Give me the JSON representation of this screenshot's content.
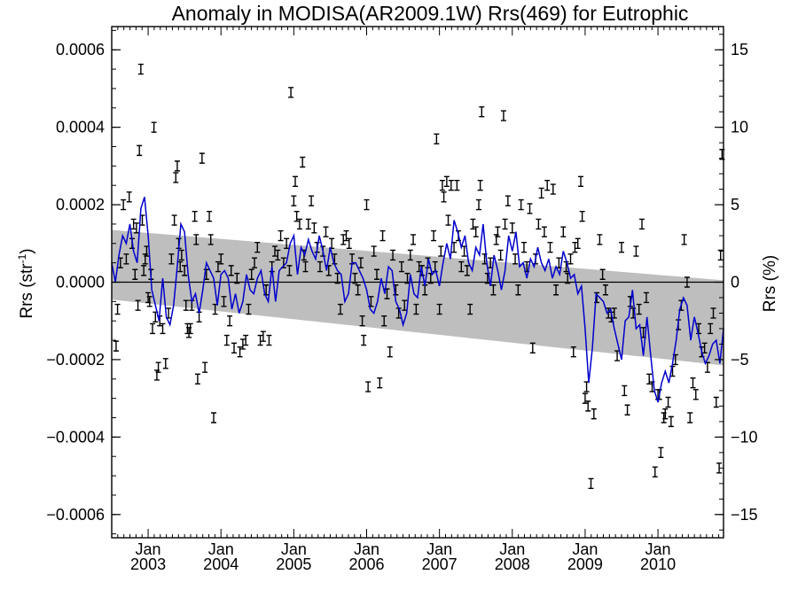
{
  "chart_data": {
    "type": "scatter",
    "title": "Anomaly in MODISA(AR2009.1W) Rrs(469) for Eutrophic",
    "ylabel_left": "Rrs (str",
    "ylabel_left_sup": "-1",
    "ylabel_left_close": ")",
    "ylabel_right": "Rrs (%)",
    "xlim": [
      2002.5,
      2010.9
    ],
    "ylim": [
      -0.00066,
      0.00066
    ],
    "ylim_right": [
      -16.5,
      16.5
    ],
    "grid": false,
    "legend": "none",
    "y_ticks": [
      {
        "value": 0.0006,
        "label": "0.0006"
      },
      {
        "value": 0.0004,
        "label": "0.0004"
      },
      {
        "value": 0.0002,
        "label": "0.0002"
      },
      {
        "value": 0.0,
        "label": "0.0000"
      },
      {
        "value": -0.0002,
        "label": "−0.0002"
      },
      {
        "value": -0.0004,
        "label": "−0.0004"
      },
      {
        "value": -0.0006,
        "label": "−0.0006"
      }
    ],
    "y_ticks_right": [
      {
        "value": 15,
        "label": "15"
      },
      {
        "value": 10,
        "label": "10"
      },
      {
        "value": 5,
        "label": "5"
      },
      {
        "value": 0,
        "label": "0"
      },
      {
        "value": -5,
        "label": "−5"
      },
      {
        "value": -10,
        "label": "−10"
      },
      {
        "value": -15,
        "label": "−15"
      }
    ],
    "x_ticks": [
      {
        "value": 2003.0,
        "month": "Jan",
        "year": "2003"
      },
      {
        "value": 2004.0,
        "month": "Jan",
        "year": "2004"
      },
      {
        "value": 2005.0,
        "month": "Jan",
        "year": "2005"
      },
      {
        "value": 2006.0,
        "month": "Jan",
        "year": "2006"
      },
      {
        "value": 2007.0,
        "month": "Jan",
        "year": "2007"
      },
      {
        "value": 2008.0,
        "month": "Jan",
        "year": "2008"
      },
      {
        "value": 2009.0,
        "month": "Jan",
        "year": "2009"
      },
      {
        "value": 2010.0,
        "month": "Jan",
        "year": "2010"
      }
    ],
    "band": {
      "x": [
        2002.5,
        2010.9
      ],
      "upper": [
        0.000135,
        5e-06
      ],
      "lower": [
        -4.5e-05,
        -0.000215
      ],
      "color": "#bebebe"
    },
    "zero_line": 0.0,
    "points": [
      [
        2002.56,
        -0.000165
      ],
      [
        2002.58,
        -7e-05
      ],
      [
        2002.62,
        5e-05
      ],
      [
        2002.66,
        0.0002
      ],
      [
        2002.7,
        6e-05
      ],
      [
        2002.74,
        0.00022
      ],
      [
        2002.78,
        0.0001
      ],
      [
        2002.8,
        0.00015
      ],
      [
        2002.82,
        2e-05
      ],
      [
        2002.84,
        0.00014
      ],
      [
        2002.86,
        -6e-05
      ],
      [
        2002.88,
        0.00034
      ],
      [
        2002.9,
        0.00055
      ],
      [
        2002.92,
        0.00016
      ],
      [
        2002.94,
        3e-05
      ],
      [
        2002.96,
        6e-05
      ],
      [
        2002.98,
        8e-05
      ],
      [
        2003.0,
        -4e-05
      ],
      [
        2003.02,
        -5e-05
      ],
      [
        2003.04,
        2e-05
      ],
      [
        2003.06,
        -0.00012
      ],
      [
        2003.08,
        0.0004
      ],
      [
        2003.1,
        -9e-05
      ],
      [
        2003.12,
        -0.00024
      ],
      [
        2003.14,
        -0.00022
      ],
      [
        2003.16,
        -0.0001
      ],
      [
        2003.2,
        -0.00012
      ],
      [
        2003.24,
        -0.00021
      ],
      [
        2003.28,
        -8e-05
      ],
      [
        2003.32,
        6e-05
      ],
      [
        2003.36,
        0.00016
      ],
      [
        2003.38,
        0.00027
      ],
      [
        2003.4,
        0.0003
      ],
      [
        2003.42,
        0.0001
      ],
      [
        2003.44,
        4e-05
      ],
      [
        2003.46,
        7e-05
      ],
      [
        2003.5,
        3e-05
      ],
      [
        2003.52,
        -6e-05
      ],
      [
        2003.54,
        -0.00012
      ],
      [
        2003.56,
        -0.00013
      ],
      [
        2003.58,
        -0.00012
      ],
      [
        2003.6,
        -6e-05
      ],
      [
        2003.64,
        0.00017
      ],
      [
        2003.66,
        0.00011
      ],
      [
        2003.68,
        -0.00025
      ],
      [
        2003.7,
        -9e-05
      ],
      [
        2003.74,
        0.00032
      ],
      [
        2003.78,
        -0.00022
      ],
      [
        2003.8,
        2e-05
      ],
      [
        2003.84,
        0.00017
      ],
      [
        2003.86,
        0.00011
      ],
      [
        2003.9,
        -0.00035
      ],
      [
        2003.92,
        -7e-05
      ],
      [
        2003.96,
        4e-05
      ],
      [
        2004.0,
        6e-05
      ],
      [
        2004.04,
        -5e-05
      ],
      [
        2004.08,
        -0.00015
      ],
      [
        2004.12,
        -0.0001
      ],
      [
        2004.14,
        3e-05
      ],
      [
        2004.18,
        -0.00017
      ],
      [
        2004.22,
        1e-05
      ],
      [
        2004.26,
        -0.00018
      ],
      [
        2004.3,
        -0.00016
      ],
      [
        2004.34,
        -0.00015
      ],
      [
        2004.38,
        -7e-05
      ],
      [
        2004.42,
        2e-05
      ],
      [
        2004.46,
        5e-05
      ],
      [
        2004.5,
        9e-05
      ],
      [
        2004.54,
        -0.00015
      ],
      [
        2004.58,
        -0.00014
      ],
      [
        2004.62,
        -2e-05
      ],
      [
        2004.66,
        -0.00015
      ],
      [
        2004.7,
        4e-05
      ],
      [
        2004.74,
        8e-05
      ],
      [
        2004.78,
        7e-05
      ],
      [
        2004.82,
        0.00012
      ],
      [
        2004.86,
        5e-05
      ],
      [
        2004.9,
        0.0001
      ],
      [
        2004.94,
        3e-05
      ],
      [
        2004.96,
        0.00049
      ],
      [
        2005.0,
        0.00021
      ],
      [
        2005.02,
        0.00026
      ],
      [
        2005.04,
        0.00017
      ],
      [
        2005.08,
        0.00015
      ],
      [
        2005.12,
        0.00031
      ],
      [
        2005.14,
        7e-05
      ],
      [
        2005.16,
        4e-05
      ],
      [
        2005.2,
        0.00015
      ],
      [
        2005.24,
        0.00021
      ],
      [
        2005.28,
        0.00014
      ],
      [
        2005.32,
        9e-05
      ],
      [
        2005.36,
        4e-05
      ],
      [
        2005.4,
        8e-05
      ],
      [
        2005.44,
        0.00013
      ],
      [
        2005.48,
        3e-05
      ],
      [
        2005.52,
        0.0001
      ],
      [
        2005.56,
        6e-05
      ],
      [
        2005.6,
        1e-05
      ],
      [
        2005.64,
        -7e-05
      ],
      [
        2005.68,
        0.00011
      ],
      [
        2005.72,
        0.00012
      ],
      [
        2005.76,
        0.0001
      ],
      [
        2005.8,
        6e-05
      ],
      [
        2005.84,
        1e-05
      ],
      [
        2005.88,
        -2e-05
      ],
      [
        2005.92,
        5e-05
      ],
      [
        2005.94,
        -0.0001
      ],
      [
        2005.96,
        -0.00015
      ],
      [
        2006.0,
        0.0002
      ],
      [
        2006.02,
        -0.00027
      ],
      [
        2006.06,
        -5e-05
      ],
      [
        2006.1,
        8e-05
      ],
      [
        2006.14,
        2e-05
      ],
      [
        2006.18,
        -0.00026
      ],
      [
        2006.22,
        0.00012
      ],
      [
        2006.24,
        -0.0001
      ],
      [
        2006.28,
        -3e-05
      ],
      [
        2006.32,
        -0.00018
      ],
      [
        2006.36,
        7e-05
      ],
      [
        2006.4,
        -2e-05
      ],
      [
        2006.44,
        -8e-05
      ],
      [
        2006.48,
        4e-05
      ],
      [
        2006.52,
        -6e-05
      ],
      [
        2006.56,
        1e-05
      ],
      [
        2006.6,
        7e-05
      ],
      [
        2006.64,
        0.00011
      ],
      [
        2006.68,
        -7e-05
      ],
      [
        2006.72,
        4e-05
      ],
      [
        2006.76,
        3e-05
      ],
      [
        2006.8,
        -2e-05
      ],
      [
        2006.84,
        5e-05
      ],
      [
        2006.88,
        1e-05
      ],
      [
        2006.92,
        0.00012
      ],
      [
        2006.94,
        4e-05
      ],
      [
        2006.96,
        0.00037
      ],
      [
        2007.0,
        -7e-05
      ],
      [
        2007.02,
        8e-05
      ],
      [
        2007.04,
        0.00025
      ],
      [
        2007.06,
        0.00022
      ],
      [
        2007.1,
        0.00026
      ],
      [
        2007.12,
        0.00016
      ],
      [
        2007.16,
        0.00025
      ],
      [
        2007.2,
        9e-05
      ],
      [
        2007.24,
        0.00025
      ],
      [
        2007.26,
        0.00012
      ],
      [
        2007.3,
        4e-05
      ],
      [
        2007.34,
        8e-05
      ],
      [
        2007.38,
        3e-05
      ],
      [
        2007.42,
        -7e-05
      ],
      [
        2007.46,
        0.00015
      ],
      [
        2007.5,
        0.00013
      ],
      [
        2007.54,
        0.0002
      ],
      [
        2007.56,
        0.00025
      ],
      [
        2007.58,
        0.00044
      ],
      [
        2007.62,
        6e-05
      ],
      [
        2007.66,
        1e-05
      ],
      [
        2007.7,
        5e-05
      ],
      [
        2007.74,
        -2e-05
      ],
      [
        2007.78,
        0.00011
      ],
      [
        2007.8,
        0.00013
      ],
      [
        2007.84,
        7e-05
      ],
      [
        2007.88,
        0.00043
      ],
      [
        2007.9,
        0.00015
      ],
      [
        2007.94,
        0.00021
      ],
      [
        2008.0,
        0.00014
      ],
      [
        2008.04,
        6e-05
      ],
      [
        2008.08,
        -2e-05
      ],
      [
        2008.12,
        0.0002
      ],
      [
        2008.16,
        9e-05
      ],
      [
        2008.2,
        4e-05
      ],
      [
        2008.24,
        0.00019
      ],
      [
        2008.28,
        -0.00017
      ],
      [
        2008.32,
        6e-05
      ],
      [
        2008.36,
        0.00015
      ],
      [
        2008.4,
        0.00023
      ],
      [
        2008.44,
        0.00013
      ],
      [
        2008.48,
        0.00025
      ],
      [
        2008.52,
        9e-05
      ],
      [
        2008.56,
        0.00024
      ],
      [
        2008.6,
        -2e-05
      ],
      [
        2008.64,
        5e-05
      ],
      [
        2008.7,
        0.00013
      ],
      [
        2008.74,
        4e-05
      ],
      [
        2008.76,
        1e-05
      ],
      [
        2008.8,
        6e-05
      ],
      [
        2008.84,
        -0.00018
      ],
      [
        2008.86,
        9e-05
      ],
      [
        2008.9,
        0.0001
      ],
      [
        2008.94,
        0.00026
      ],
      [
        2008.96,
        0.00017
      ],
      [
        2009.0,
        -0.0003
      ],
      [
        2009.02,
        -0.00027
      ],
      [
        2009.04,
        -0.00032
      ],
      [
        2009.08,
        -0.00052
      ],
      [
        2009.12,
        -0.00034
      ],
      [
        2009.16,
        -4e-05
      ],
      [
        2009.2,
        0.00011
      ],
      [
        2009.24,
        2e-05
      ],
      [
        2009.28,
        -2e-05
      ],
      [
        2009.32,
        -8e-05
      ],
      [
        2009.36,
        -9e-05
      ],
      [
        2009.4,
        -8e-05
      ],
      [
        2009.44,
        -0.00019
      ],
      [
        2009.5,
        9e-05
      ],
      [
        2009.54,
        -0.00028
      ],
      [
        2009.58,
        -0.00033
      ],
      [
        2009.62,
        -5e-05
      ],
      [
        2009.66,
        -8e-05
      ],
      [
        2009.7,
        8e-05
      ],
      [
        2009.74,
        -7e-05
      ],
      [
        2009.78,
        0.00015
      ],
      [
        2009.8,
        -0.00013
      ],
      [
        2009.84,
        -4e-05
      ],
      [
        2009.88,
        -0.00025
      ],
      [
        2009.92,
        -0.00027
      ],
      [
        2009.96,
        -0.00049
      ],
      [
        2010.0,
        -0.00029
      ],
      [
        2010.02,
        -0.00029
      ],
      [
        2010.04,
        -0.00044
      ],
      [
        2010.08,
        -0.00035
      ],
      [
        2010.1,
        -0.00034
      ],
      [
        2010.14,
        -0.00031
      ],
      [
        2010.18,
        -0.00036
      ],
      [
        2010.2,
        -0.00023
      ],
      [
        2010.24,
        -0.0002
      ],
      [
        2010.28,
        -0.00011
      ],
      [
        2010.32,
        -6e-05
      ],
      [
        2010.36,
        0.00011
      ],
      [
        2010.4,
        0.0
      ],
      [
        2010.44,
        -0.00035
      ],
      [
        2010.48,
        -0.00026
      ],
      [
        2010.52,
        -0.00029
      ],
      [
        2010.56,
        -0.00012
      ],
      [
        2010.6,
        -0.00018
      ],
      [
        2010.64,
        -0.00017
      ],
      [
        2010.68,
        -0.00022
      ],
      [
        2010.72,
        -0.00012
      ],
      [
        2010.76,
        -8e-05
      ],
      [
        2010.8,
        -0.00031
      ],
      [
        2010.84,
        -0.00048
      ],
      [
        2010.86,
        7e-05
      ],
      [
        2010.88,
        0.00033
      ]
    ],
    "smooth_x": [
      2002.5,
      2002.55,
      2002.6,
      2002.65,
      2002.7,
      2002.75,
      2002.8,
      2002.85,
      2002.9,
      2002.95,
      2003.0,
      2003.05,
      2003.1,
      2003.15,
      2003.2,
      2003.25,
      2003.3,
      2003.35,
      2003.4,
      2003.45,
      2003.5,
      2003.55,
      2003.6,
      2003.65,
      2003.7,
      2003.75,
      2003.8,
      2003.85,
      2003.9,
      2003.95,
      2004.0,
      2004.05,
      2004.1,
      2004.15,
      2004.2,
      2004.25,
      2004.3,
      2004.35,
      2004.4,
      2004.45,
      2004.5,
      2004.55,
      2004.6,
      2004.65,
      2004.7,
      2004.75,
      2004.8,
      2004.85,
      2004.9,
      2004.95,
      2005.0,
      2005.05,
      2005.1,
      2005.15,
      2005.2,
      2005.25,
      2005.3,
      2005.35,
      2005.4,
      2005.45,
      2005.5,
      2005.55,
      2005.6,
      2005.65,
      2005.7,
      2005.75,
      2005.8,
      2005.85,
      2005.9,
      2005.95,
      2006.0,
      2006.05,
      2006.1,
      2006.15,
      2006.2,
      2006.25,
      2006.3,
      2006.35,
      2006.4,
      2006.45,
      2006.5,
      2006.55,
      2006.6,
      2006.65,
      2006.7,
      2006.75,
      2006.8,
      2006.85,
      2006.9,
      2006.95,
      2007.0,
      2007.05,
      2007.1,
      2007.15,
      2007.2,
      2007.25,
      2007.3,
      2007.35,
      2007.4,
      2007.45,
      2007.5,
      2007.55,
      2007.6,
      2007.65,
      2007.7,
      2007.75,
      2007.8,
      2007.85,
      2007.9,
      2007.95,
      2008.0,
      2008.05,
      2008.1,
      2008.15,
      2008.2,
      2008.25,
      2008.3,
      2008.35,
      2008.4,
      2008.45,
      2008.5,
      2008.55,
      2008.6,
      2008.65,
      2008.7,
      2008.75,
      2008.8,
      2008.85,
      2008.9,
      2008.95,
      2009.0,
      2009.05,
      2009.1,
      2009.15,
      2009.2,
      2009.25,
      2009.3,
      2009.35,
      2009.4,
      2009.45,
      2009.5,
      2009.55,
      2009.6,
      2009.65,
      2009.7,
      2009.75,
      2009.8,
      2009.85,
      2009.9,
      2009.95,
      2010.0,
      2010.05,
      2010.1,
      2010.15,
      2010.2,
      2010.25,
      2010.3,
      2010.35,
      2010.4,
      2010.45,
      2010.5,
      2010.55,
      2010.6,
      2010.65,
      2010.7,
      2010.75,
      2010.8,
      2010.85,
      2010.9
    ],
    "smooth_y": [
      5e-05,
      0.0,
      7e-05,
      0.00012,
      0.0001,
      0.00015,
      8e-05,
      5e-05,
      0.00019,
      0.00022,
      0.00012,
      -2e-05,
      -6e-05,
      -0.0001,
      1e-05,
      -9e-05,
      -0.00011,
      -6e-05,
      4e-05,
      0.00015,
      0.00013,
      2e-05,
      -5e-05,
      -3e-05,
      -8e-05,
      -2e-05,
      5e-05,
      3e-05,
      1e-05,
      -6e-05,
      2e-05,
      3e-05,
      1e-05,
      -7e-05,
      -3e-05,
      -8e-05,
      -5e-05,
      2e-05,
      -2e-05,
      -3e-05,
      1e-05,
      3e-05,
      -3e-05,
      -5e-05,
      4e-05,
      -5e-05,
      3e-05,
      4e-05,
      5e-05,
      0.0001,
      0.00012,
      2e-05,
      9e-05,
      7e-05,
      0.00011,
      8e-05,
      6e-05,
      0.00012,
      8e-05,
      3e-05,
      9e-05,
      5e-05,
      3e-05,
      2e-05,
      -5e-05,
      -3e-05,
      5e-05,
      5e-05,
      3e-05,
      1e-05,
      -2e-05,
      -7e-05,
      -8e-05,
      -5e-05,
      1e-05,
      -3e-05,
      4e-05,
      3e-05,
      -5e-05,
      -7e-05,
      -0.00011,
      -8e-05,
      2e-05,
      -3e-05,
      -4e-05,
      4e-05,
      -1e-05,
      6e-05,
      2e-05,
      3e-05,
      -1e-05,
      5e-05,
      0.0001,
      6e-05,
      0.00016,
      0.00013,
      9e-05,
      0.00012,
      5e-05,
      3e-05,
      9e-05,
      7e-05,
      0.00015,
      5e-05,
      -1e-05,
      7e-05,
      3e-05,
      -2e-05,
      3e-05,
      0.00012,
      8e-05,
      0.00013,
      4e-05,
      5e-05,
      1e-05,
      6e-05,
      4e-05,
      9e-05,
      5e-05,
      3e-05,
      6e-05,
      1e-05,
      4e-05,
      2e-05,
      8e-05,
      5e-05,
      1e-05,
      2e-05,
      -3e-05,
      -1e-05,
      -0.00012,
      -0.00026,
      -0.00017,
      -3e-05,
      -4e-05,
      -5e-05,
      -8e-05,
      -7e-05,
      -0.00012,
      -0.00016,
      -0.0002,
      -0.0001,
      -9e-05,
      -2e-05,
      -0.00012,
      -0.00011,
      -0.00019,
      -9e-05,
      -0.00019,
      -0.00028,
      -0.00031,
      -0.00026,
      -0.00023,
      -0.00026,
      -0.00021,
      -0.00015,
      -7e-05,
      -4e-05,
      -6e-05,
      -0.00015,
      -9e-05,
      -0.00013,
      -0.00018,
      -0.00021,
      -0.00019,
      -0.00016,
      -0.00015,
      -0.00021,
      -0.00012,
      -3e-05
    ],
    "colors": {
      "smooth": "#0000cc",
      "band": "#bebebe",
      "points": "#000000"
    }
  }
}
